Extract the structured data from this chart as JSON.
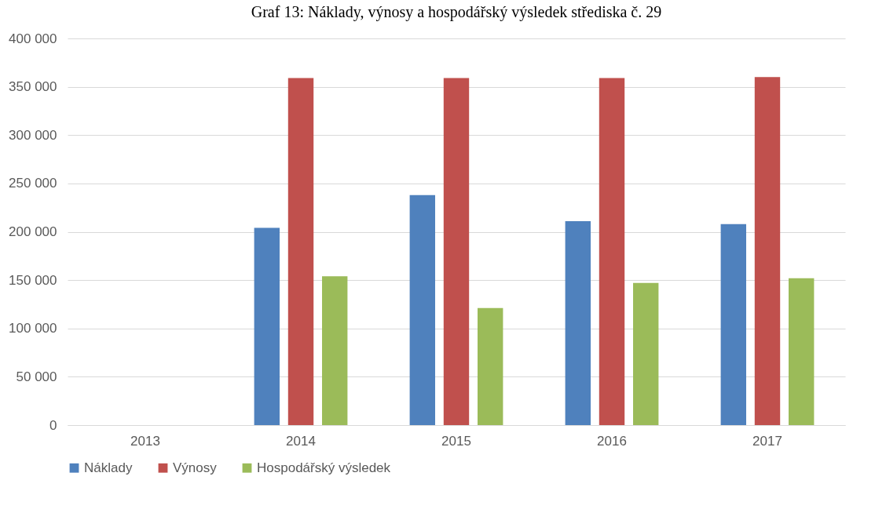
{
  "chart_data": {
    "type": "bar",
    "title": "Graf 13: Náklady, výnosy a hospodářský výsledek střediska č. 29",
    "categories": [
      "2013",
      "2014",
      "2015",
      "2016",
      "2017"
    ],
    "series": [
      {
        "name": "Náklady",
        "color": "#4f81bd",
        "values": [
          null,
          204000,
          238000,
          211000,
          208000
        ]
      },
      {
        "name": "Výnosy",
        "color": "#c0504d",
        "values": [
          null,
          359000,
          359000,
          359000,
          360000
        ]
      },
      {
        "name": "Hospodářský výsledek",
        "color": "#9bbb59",
        "values": [
          null,
          154000,
          121000,
          147000,
          152000
        ]
      }
    ],
    "ylim": [
      0,
      400000
    ],
    "yticks": [
      0,
      {
        "value": 50000,
        "label": "50 000"
      },
      {
        "value": 100000,
        "label": "100 000"
      },
      {
        "value": 150000,
        "label": "150 000"
      },
      {
        "value": 200000,
        "label": "200 000"
      },
      {
        "value": 250000,
        "label": "250 000"
      },
      {
        "value": 300000,
        "label": "300 000"
      },
      {
        "value": 350000,
        "label": "350 000"
      },
      {
        "value": 400000,
        "label": "400 000"
      }
    ],
    "grid": "y",
    "legend": "bottom"
  }
}
